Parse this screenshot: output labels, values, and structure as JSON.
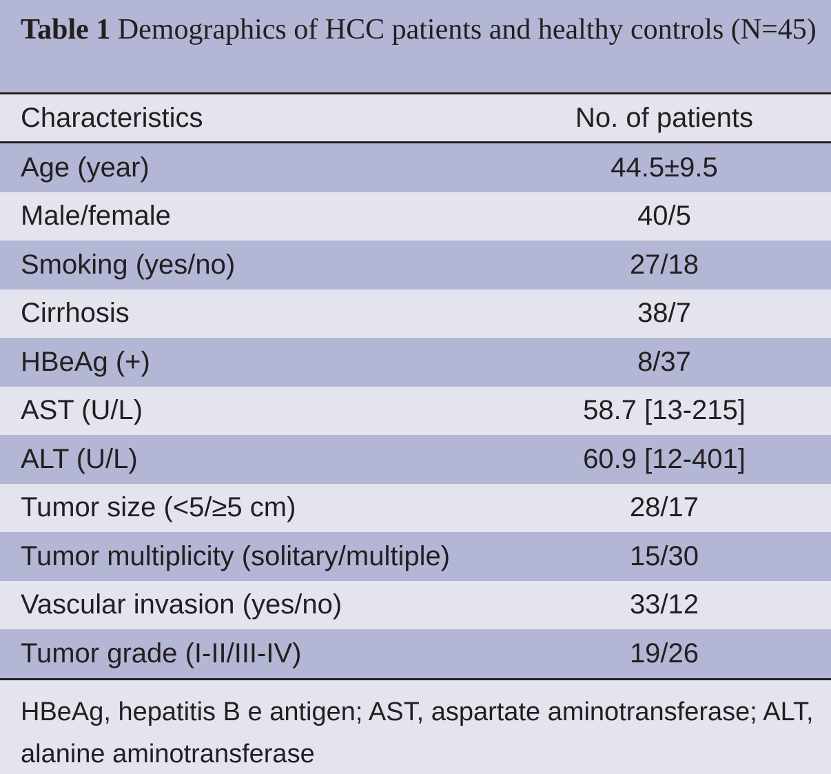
{
  "caption": {
    "label": "Table 1",
    "text": "Demographics of HCC patients and healthy controls (N=45)"
  },
  "header": {
    "col1": "Characteristics",
    "col2": "No. of patients"
  },
  "rows": [
    {
      "label": "Age (year)",
      "value": "44.5±9.5"
    },
    {
      "label": "Male/female",
      "value": "40/5"
    },
    {
      "label": "Smoking (yes/no)",
      "value": "27/18"
    },
    {
      "label": "Cirrhosis",
      "value": "38/7"
    },
    {
      "label": "HBeAg (+)",
      "value": "8/37"
    },
    {
      "label": "AST (U/L)",
      "value": "58.7 [13-215]"
    },
    {
      "label": "ALT (U/L)",
      "value": "60.9 [12-401]"
    },
    {
      "label": "Tumor size (<5/≥5 cm)",
      "value": "28/17"
    },
    {
      "label": "Tumor multiplicity (solitary/multiple)",
      "value": "15/30"
    },
    {
      "label": "Vascular invasion (yes/no)",
      "value": "33/12"
    },
    {
      "label": "Tumor grade (I-II/III-IV)",
      "value": "19/26"
    }
  ],
  "footnote": "HBeAg, hepatitis B e antigen; AST, aspartate aminotransferase; ALT, alanine aminotransferase",
  "colors": {
    "shaded": "#b4b6d5",
    "plain": "#e4e4ef",
    "text": "#231f20"
  }
}
